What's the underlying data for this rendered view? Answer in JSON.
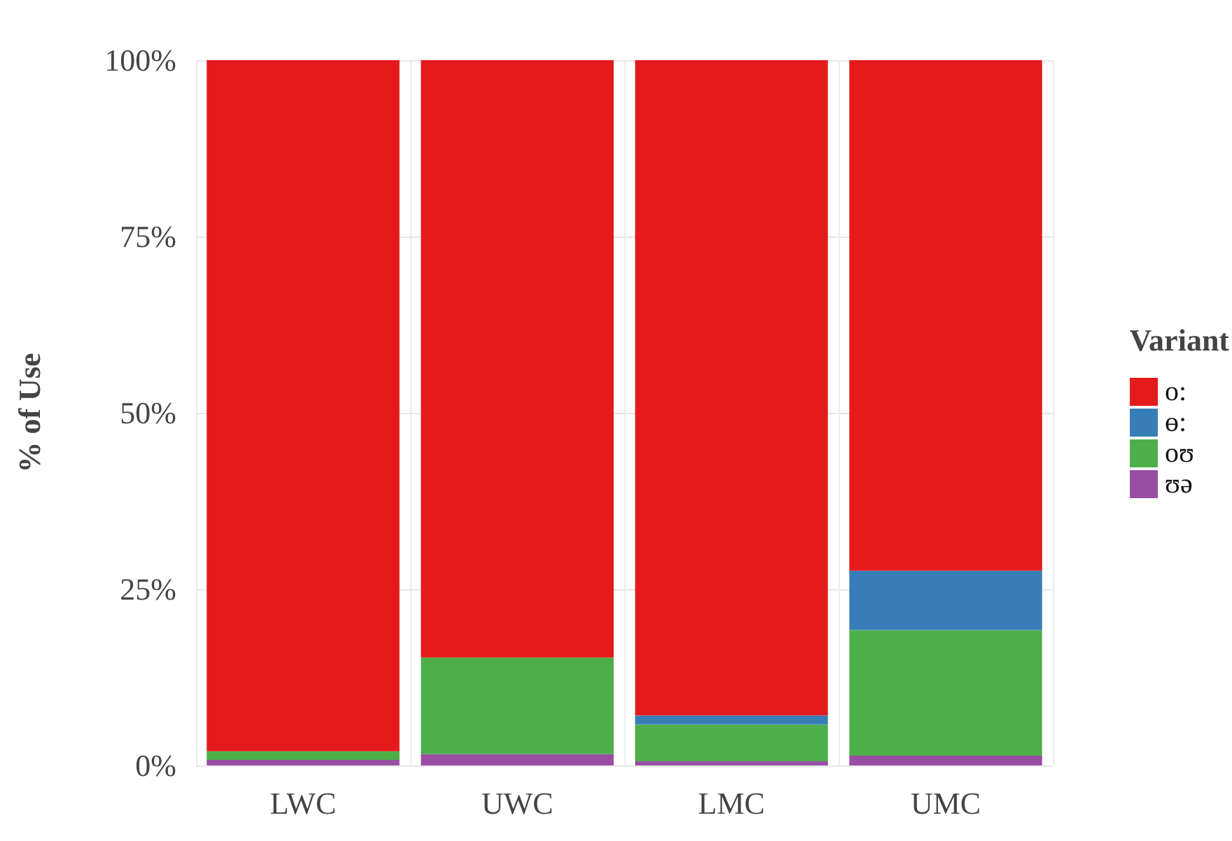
{
  "chart_data": {
    "type": "bar",
    "stacked": true,
    "ylabel": "% of Use",
    "legend_title": "Variant",
    "legend": "right",
    "grid": true,
    "categories": [
      "LWC",
      "UWC",
      "LMC",
      "UMC"
    ],
    "series": [
      {
        "name": "ʊə",
        "color": "#984ea3",
        "values": [
          0.8,
          1.6,
          0.6,
          1.4
        ]
      },
      {
        "name": "oʊ",
        "color": "#4daf4a",
        "values": [
          1.2,
          13.7,
          5.2,
          17.8
        ]
      },
      {
        "name": "ɵ:",
        "color": "#377eb8",
        "values": [
          0,
          0,
          1.3,
          8.4
        ]
      },
      {
        "name": "o:",
        "color": "#e41a1c",
        "values": [
          98.0,
          84.7,
          92.9,
          72.4
        ]
      }
    ],
    "ylim": [
      0,
      100
    ],
    "yticks": [
      {
        "value": 0,
        "label": "0%"
      },
      {
        "value": 25,
        "label": "25%"
      },
      {
        "value": 50,
        "label": "50%"
      },
      {
        "value": 75,
        "label": "75%"
      },
      {
        "value": 100,
        "label": "100%"
      }
    ]
  }
}
